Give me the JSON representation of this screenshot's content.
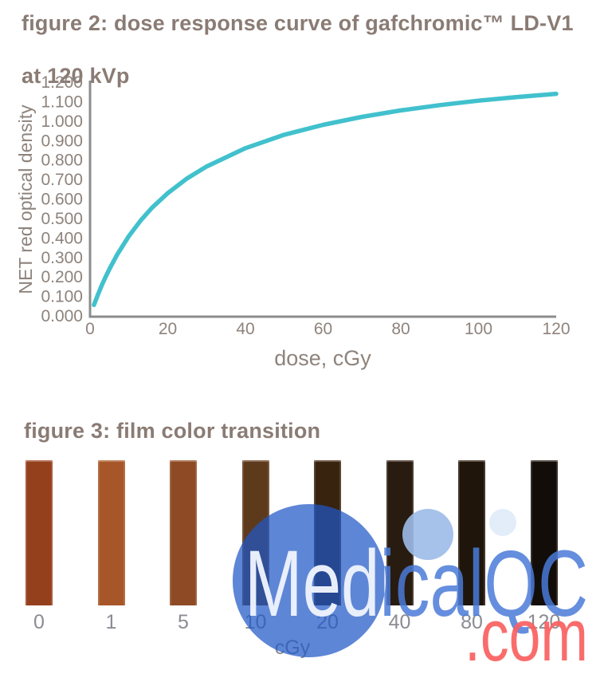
{
  "headings": {
    "figure2_line1": "figure 2: dose response curve of gafchromic™ LD-V1",
    "figure2_line2": "at 120 kVp",
    "figure3": "figure 3: film color transition"
  },
  "chart_data": [
    {
      "type": "line",
      "title": "figure 2: dose response curve of gafchromic™ LD-V1 at 120 kVp",
      "xlabel": "dose, cGy",
      "ylabel": "NET red optical density",
      "xlim": [
        0,
        120
      ],
      "ylim": [
        0.0,
        1.2
      ],
      "x_ticks": [
        0,
        20,
        40,
        60,
        80,
        100,
        120
      ],
      "y_ticks": [
        "0.000",
        "0.100",
        "0.200",
        "0.300",
        "0.400",
        "0.500",
        "0.600",
        "0.700",
        "0.800",
        "0.900",
        "1.000",
        "1.100",
        "1.200"
      ],
      "grid": false,
      "legend": false,
      "line_color": "#41c1cd",
      "axis_color": "#8c8c8c",
      "points": [
        [
          1,
          0.056
        ],
        [
          2,
          0.108
        ],
        [
          3,
          0.156
        ],
        [
          4,
          0.2
        ],
        [
          5,
          0.241
        ],
        [
          7,
          0.315
        ],
        [
          10,
          0.41
        ],
        [
          13,
          0.489
        ],
        [
          16,
          0.556
        ],
        [
          20,
          0.63
        ],
        [
          25,
          0.706
        ],
        [
          30,
          0.767
        ],
        [
          40,
          0.861
        ],
        [
          50,
          0.93
        ],
        [
          60,
          0.981
        ],
        [
          70,
          1.022
        ],
        [
          80,
          1.055
        ],
        [
          90,
          1.082
        ],
        [
          100,
          1.105
        ],
        [
          110,
          1.124
        ],
        [
          120,
          1.14
        ]
      ]
    },
    {
      "type": "swatch",
      "title": "figure 3: film color transition",
      "unit": "cGy",
      "swatches": [
        {
          "dose": "0",
          "color": "#94401d"
        },
        {
          "dose": "1",
          "color": "#a65628"
        },
        {
          "dose": "5",
          "color": "#8d4a24"
        },
        {
          "dose": "10",
          "color": "#5d3a1c"
        },
        {
          "dose": "20",
          "color": "#38230f"
        },
        {
          "dose": "40",
          "color": "#281b10"
        },
        {
          "dose": "80",
          "color": "#1f150a"
        },
        {
          "dose": "120",
          "color": "#120d08"
        }
      ]
    }
  ],
  "watermark": {
    "text": "MedicalQC",
    "suffix": ".com",
    "circle_color": "#2058c6",
    "circle_medium_color": "#9cbbe9",
    "circle_small_color": "#e2ecfa",
    "text_blue": "#4a7ad8",
    "text_white": "#ffffff",
    "suffix_color": "#fa5f5f"
  }
}
